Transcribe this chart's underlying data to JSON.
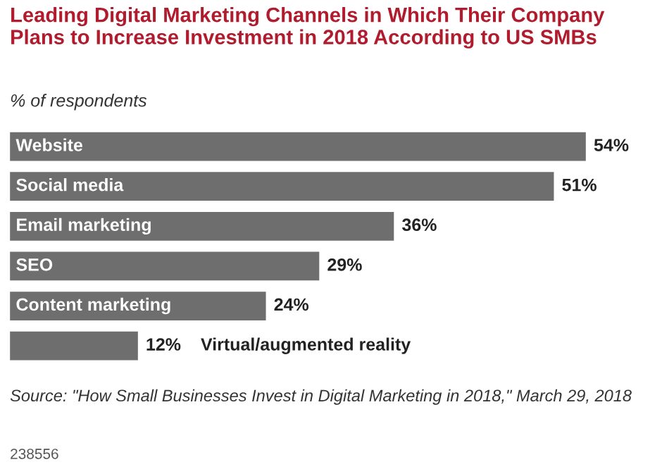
{
  "chart_data": {
    "type": "bar",
    "orientation": "horizontal",
    "title": "Leading Digital Marketing Channels in Which Their Company Plans to Increase Investment in 2018 According to US SMBs",
    "subtitle": "% of respondents",
    "categories": [
      "Website",
      "Social media",
      "Email marketing",
      "SEO",
      "Content marketing",
      "Virtual/augmented reality"
    ],
    "values": [
      54,
      51,
      36,
      29,
      24,
      12
    ],
    "value_labels": [
      "54%",
      "51%",
      "36%",
      "29%",
      "24%",
      "12%"
    ],
    "color": "#6e6e6e",
    "annotations": [
      "Source: \"How Small Businesses Invest in Digital Marketing in 2018,\" March 29, 2018",
      "238556"
    ]
  }
}
